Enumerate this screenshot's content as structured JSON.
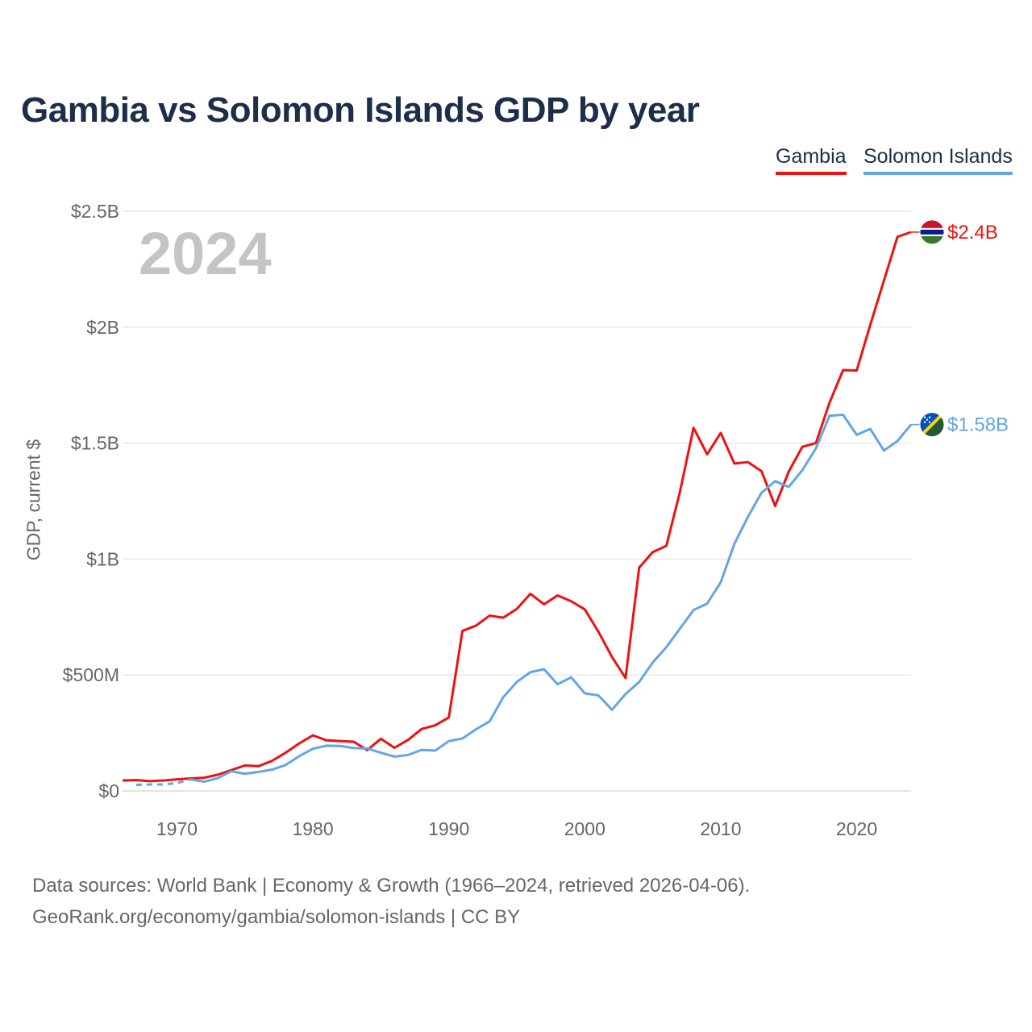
{
  "chart_data": {
    "type": "line",
    "title": "Gambia vs Solomon Islands GDP by year",
    "ylabel": "GDP, current $",
    "xlabel": "",
    "current_year": "2024",
    "xlim": [
      1966,
      2024
    ],
    "ylim": [
      0,
      2.5
    ],
    "y_ticks": [
      {
        "value": 0,
        "label": "$0"
      },
      {
        "value": 0.5,
        "label": "$500M"
      },
      {
        "value": 1,
        "label": "$1B"
      },
      {
        "value": 1.5,
        "label": "$1.5B"
      },
      {
        "value": 2,
        "label": "$2B"
      },
      {
        "value": 2.5,
        "label": "$2.5B"
      }
    ],
    "x_ticks": [
      {
        "value": 1970,
        "label": "1970"
      },
      {
        "value": 1980,
        "label": "1980"
      },
      {
        "value": 1990,
        "label": "1990"
      },
      {
        "value": 2000,
        "label": "2000"
      },
      {
        "value": 2010,
        "label": "2010"
      },
      {
        "value": 2020,
        "label": "2020"
      }
    ],
    "grid": true,
    "legend_position": "top-right",
    "series": [
      {
        "name": "Gambia",
        "color": "#ee1111",
        "end_label": "$2.4B",
        "flag": "gambia-flag",
        "x": [
          1966,
          1967,
          1968,
          1969,
          1970,
          1971,
          1972,
          1973,
          1974,
          1975,
          1976,
          1977,
          1978,
          1979,
          1980,
          1981,
          1982,
          1983,
          1984,
          1985,
          1986,
          1987,
          1988,
          1989,
          1990,
          1991,
          1992,
          1993,
          1994,
          1995,
          1996,
          1997,
          1998,
          1999,
          2000,
          2001,
          2002,
          2003,
          2004,
          2005,
          2006,
          2007,
          2008,
          2009,
          2010,
          2011,
          2012,
          2013,
          2014,
          2015,
          2016,
          2017,
          2018,
          2019,
          2020,
          2021,
          2022,
          2023,
          2024
        ],
        "values": [
          0.045,
          0.047,
          0.042,
          0.045,
          0.05,
          0.054,
          0.057,
          0.07,
          0.09,
          0.11,
          0.107,
          0.13,
          0.165,
          0.205,
          0.24,
          0.218,
          0.215,
          0.212,
          0.176,
          0.225,
          0.186,
          0.22,
          0.267,
          0.283,
          0.317,
          0.69,
          0.713,
          0.756,
          0.747,
          0.785,
          0.85,
          0.805,
          0.843,
          0.818,
          0.783,
          0.687,
          0.578,
          0.487,
          0.963,
          1.03,
          1.057,
          1.29,
          1.566,
          1.452,
          1.544,
          1.412,
          1.418,
          1.379,
          1.229,
          1.377,
          1.484,
          1.5,
          1.674,
          1.815,
          1.813,
          2.01,
          2.2,
          2.39,
          2.41
        ]
      },
      {
        "name": "Solomon Islands",
        "color": "#63a5e6",
        "end_label": "$1.58B",
        "flag": "solomon-islands-flag",
        "x": [
          1967,
          1968,
          1969,
          1970,
          1971,
          1972,
          1973,
          1974,
          1975,
          1976,
          1977,
          1978,
          1979,
          1980,
          1981,
          1982,
          1983,
          1984,
          1985,
          1986,
          1987,
          1988,
          1989,
          1990,
          1991,
          1992,
          1993,
          1994,
          1995,
          1996,
          1997,
          1998,
          1999,
          2000,
          2001,
          2002,
          2003,
          2004,
          2005,
          2006,
          2007,
          2008,
          2009,
          2010,
          2011,
          2012,
          2013,
          2014,
          2015,
          2016,
          2017,
          2018,
          2019,
          2020,
          2021,
          2022,
          2023,
          2024
        ],
        "values": [
          0.026,
          0.028,
          0.028,
          0.034,
          0.05,
          0.04,
          0.055,
          0.085,
          0.074,
          0.082,
          0.092,
          0.112,
          0.15,
          0.182,
          0.195,
          0.194,
          0.185,
          0.183,
          0.165,
          0.148,
          0.155,
          0.177,
          0.174,
          0.215,
          0.226,
          0.266,
          0.3,
          0.404,
          0.47,
          0.512,
          0.525,
          0.46,
          0.49,
          0.421,
          0.412,
          0.35,
          0.418,
          0.47,
          0.554,
          0.62,
          0.7,
          0.78,
          0.808,
          0.9,
          1.065,
          1.182,
          1.286,
          1.336,
          1.311,
          1.383,
          1.477,
          1.618,
          1.622,
          1.536,
          1.561,
          1.468,
          1.509,
          1.58
        ]
      }
    ]
  },
  "footer": {
    "source": "Data sources: World Bank | Economy & Growth (1966–2024, retrieved 2026-04-06).",
    "link": "GeoRank.org/economy/gambia/solomon-islands | CC BY"
  }
}
